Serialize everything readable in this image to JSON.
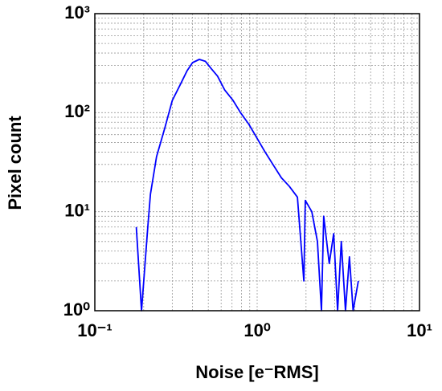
{
  "chart_data": {
    "type": "line",
    "xlabel": "Noise [e⁻RMS]",
    "ylabel": "Pixel count",
    "xscale": "log",
    "yscale": "log",
    "xlim": [
      0.1,
      10
    ],
    "ylim": [
      1,
      1000
    ],
    "xticks": [
      {
        "value": 0.1,
        "label": "10⁻¹"
      },
      {
        "value": 1,
        "label": "10⁰"
      },
      {
        "value": 10,
        "label": "10¹"
      }
    ],
    "yticks": [
      {
        "value": 1,
        "label": "10⁰"
      },
      {
        "value": 10,
        "label": "10¹"
      },
      {
        "value": 100,
        "label": "10²"
      },
      {
        "value": 1000,
        "label": "10³"
      }
    ],
    "grid": true,
    "series": [
      {
        "color": "#0000ff",
        "x": [
          0.18,
          0.194,
          0.212,
          0.22,
          0.24,
          0.27,
          0.3,
          0.34,
          0.37,
          0.4,
          0.44,
          0.48,
          0.52,
          0.57,
          0.63,
          0.71,
          0.79,
          0.89,
          1.0,
          1.12,
          1.25,
          1.41,
          1.58,
          1.77,
          1.94,
          1.98,
          2.17,
          2.35,
          2.49,
          2.57,
          2.78,
          2.96,
          3.13,
          3.3,
          3.5,
          3.7,
          3.9,
          4.2
        ],
        "values": [
          7,
          1,
          7,
          15,
          36,
          70,
          133,
          200,
          265,
          320,
          345,
          330,
          280,
          234,
          170,
          133,
          100,
          76,
          55,
          40,
          30,
          22,
          18,
          14,
          2,
          13,
          10,
          5,
          1,
          9,
          3,
          6,
          1,
          5,
          1,
          3.5,
          1,
          2
        ]
      }
    ]
  }
}
